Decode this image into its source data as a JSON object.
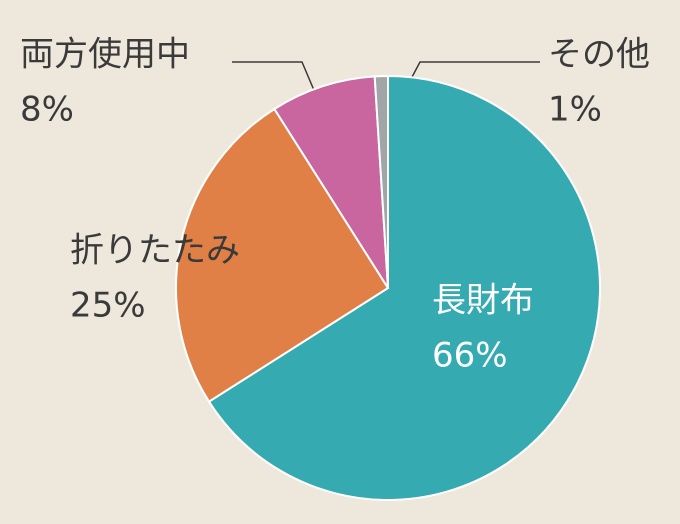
{
  "chart_data": {
    "type": "pie",
    "categories": [
      "長財布",
      "折りたたみ",
      "両方使用中",
      "その他"
    ],
    "values": [
      66,
      25,
      8,
      1
    ],
    "value_labels": [
      "66%",
      "25%",
      "8%",
      "1%"
    ],
    "colors": [
      "#35aab1",
      "#e07f46",
      "#c9659f",
      "#a2a5a8"
    ]
  }
}
